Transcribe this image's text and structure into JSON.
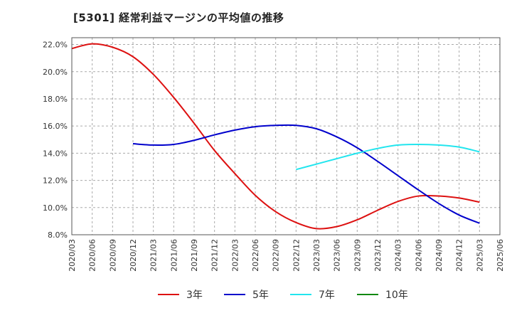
{
  "chart_data": {
    "type": "line",
    "title": "[5301]  経常利益マージンの平均値の推移",
    "x": [
      "2020/03",
      "2020/06",
      "2020/09",
      "2020/12",
      "2021/03",
      "2021/06",
      "2021/09",
      "2021/12",
      "2022/03",
      "2022/06",
      "2022/09",
      "2022/12",
      "2023/03",
      "2023/06",
      "2023/09",
      "2023/12",
      "2024/03",
      "2024/06",
      "2024/09",
      "2024/12",
      "2025/03",
      "2025/06"
    ],
    "ylim": [
      8.0,
      22.5
    ],
    "yticks": [
      "8.0%",
      "10.0%",
      "12.0%",
      "14.0%",
      "16.0%",
      "18.0%",
      "20.0%",
      "22.0%"
    ],
    "ytick_values": [
      8,
      10,
      12,
      14,
      16,
      18,
      20,
      22
    ],
    "grid": true,
    "legend_position": "bottom",
    "series": [
      {
        "name": "3年",
        "color": "#dd1111",
        "values": [
          21.7,
          22.05,
          21.8,
          21.1,
          19.8,
          18.1,
          16.2,
          14.2,
          12.5,
          10.9,
          9.7,
          8.9,
          8.45,
          8.6,
          9.1,
          9.8,
          10.45,
          10.85,
          10.85,
          10.7,
          10.4,
          null
        ]
      },
      {
        "name": "5年",
        "color": "#0000cc",
        "values": [
          null,
          null,
          null,
          14.7,
          14.6,
          14.65,
          14.95,
          15.35,
          15.7,
          15.95,
          16.05,
          16.05,
          15.8,
          15.2,
          14.4,
          13.4,
          12.35,
          11.3,
          10.3,
          9.45,
          8.85,
          null
        ]
      },
      {
        "name": "7年",
        "color": "#22e5ee",
        "values": [
          null,
          null,
          null,
          null,
          null,
          null,
          null,
          null,
          null,
          null,
          null,
          12.8,
          13.2,
          13.6,
          14.0,
          14.35,
          14.6,
          14.65,
          14.6,
          14.45,
          14.1,
          null
        ]
      },
      {
        "name": "10年",
        "color": "#118811",
        "values": [
          null,
          null,
          null,
          null,
          null,
          null,
          null,
          null,
          null,
          null,
          null,
          null,
          null,
          null,
          null,
          null,
          null,
          null,
          null,
          null,
          null,
          null
        ]
      }
    ]
  }
}
